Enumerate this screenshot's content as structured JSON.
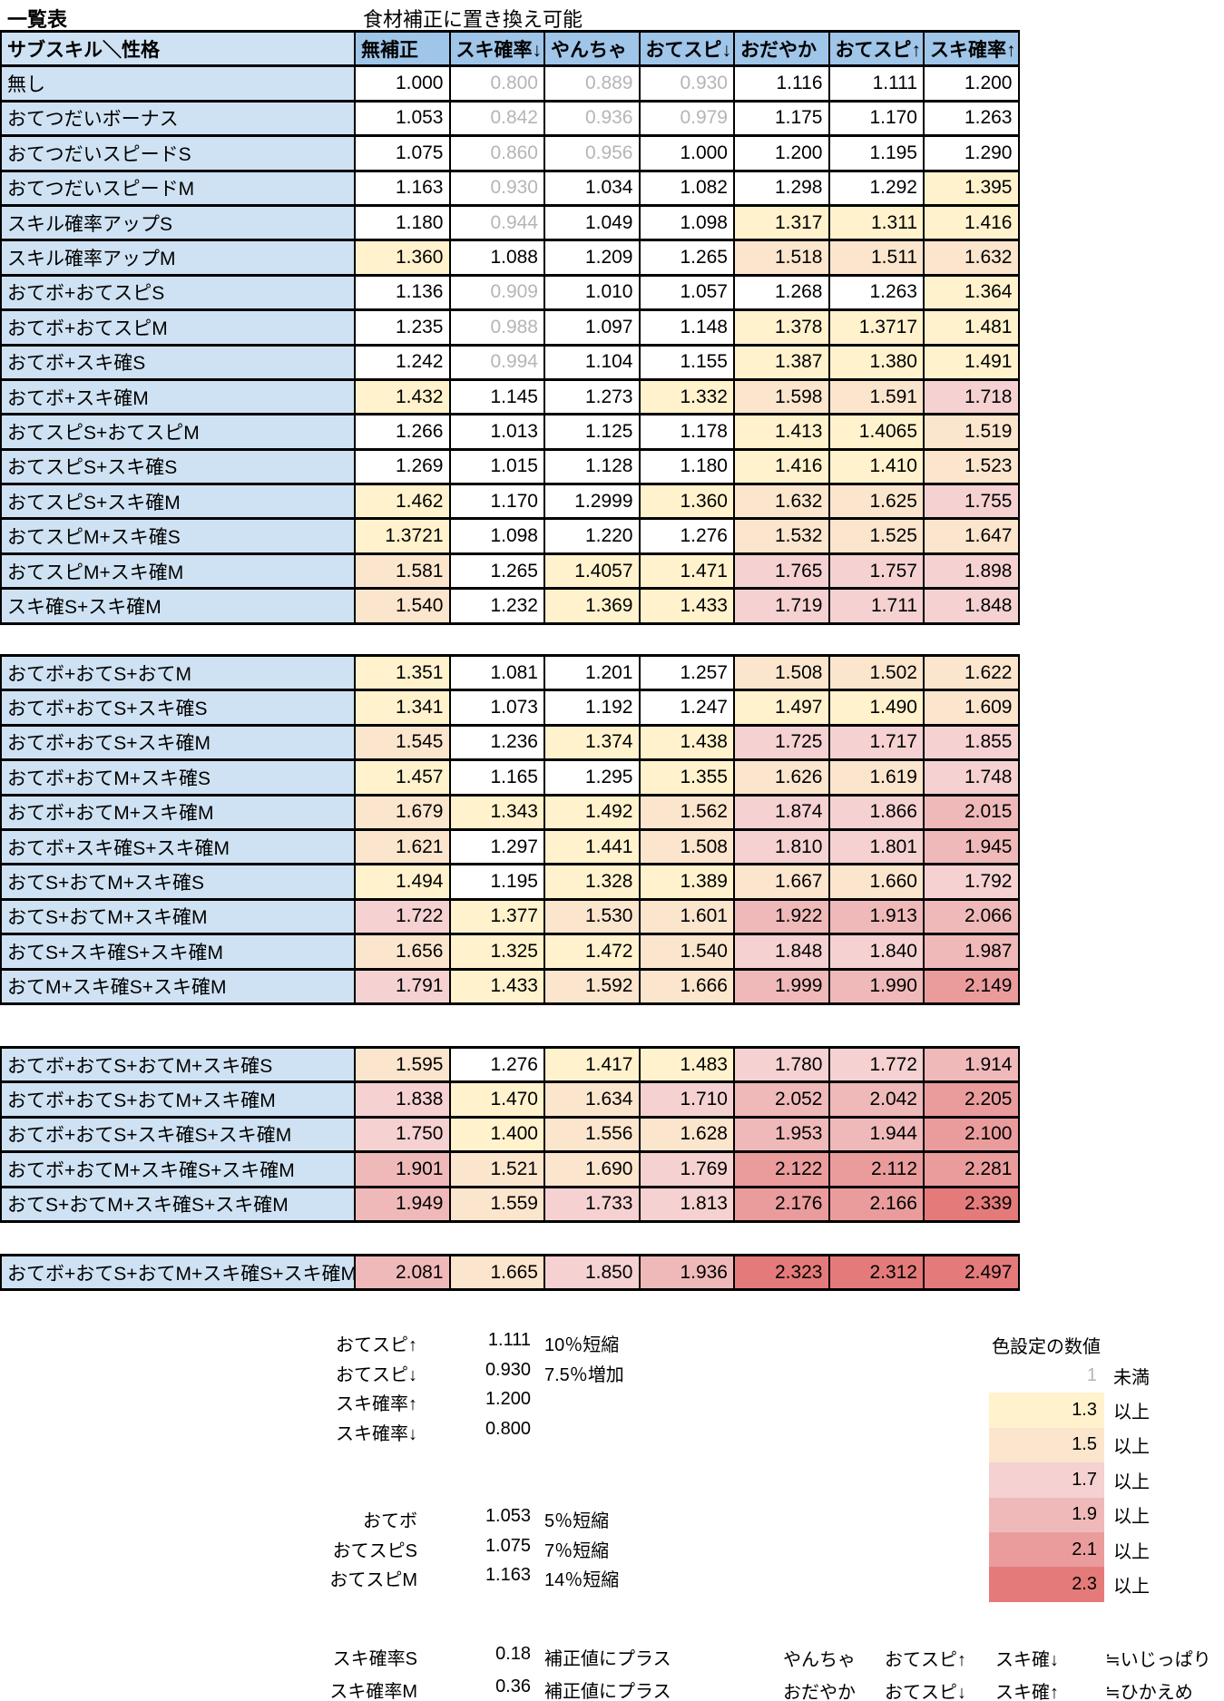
{
  "title": "一覧表",
  "note": "食材補正に置き換え可能",
  "table": {
    "corner_header": "サブスキル＼性格",
    "columns": [
      "無補正",
      "スキ確率↓",
      "やんちゃ",
      "おてスピ↓",
      "おだやか",
      "おてスピ↑",
      "スキ確率↑"
    ],
    "blocks": [
      {
        "rows": [
          {
            "label": "無し",
            "values": [
              "1.000",
              "0.800",
              "0.889",
              "0.930",
              "1.116",
              "1.111",
              "1.200"
            ]
          },
          {
            "label": "おてつだいボーナス",
            "values": [
              "1.053",
              "0.842",
              "0.936",
              "0.979",
              "1.175",
              "1.170",
              "1.263"
            ]
          },
          {
            "label": "おてつだいスピードS",
            "values": [
              "1.075",
              "0.860",
              "0.956",
              "1.000",
              "1.200",
              "1.195",
              "1.290"
            ]
          },
          {
            "label": "おてつだいスピードM",
            "values": [
              "1.163",
              "0.930",
              "1.034",
              "1.082",
              "1.298",
              "1.292",
              "1.395"
            ]
          },
          {
            "label": "スキル確率アップS",
            "values": [
              "1.180",
              "0.944",
              "1.049",
              "1.098",
              "1.317",
              "1.311",
              "1.416"
            ]
          },
          {
            "label": "スキル確率アップM",
            "values": [
              "1.360",
              "1.088",
              "1.209",
              "1.265",
              "1.518",
              "1.511",
              "1.632"
            ]
          },
          {
            "label": "おてボ+おてスピS",
            "values": [
              "1.136",
              "0.909",
              "1.010",
              "1.057",
              "1.268",
              "1.263",
              "1.364"
            ]
          },
          {
            "label": "おてボ+おてスピM",
            "values": [
              "1.235",
              "0.988",
              "1.097",
              "1.148",
              "1.378",
              "1.3717",
              "1.481"
            ]
          },
          {
            "label": "おてボ+スキ確S",
            "values": [
              "1.242",
              "0.994",
              "1.104",
              "1.155",
              "1.387",
              "1.380",
              "1.491"
            ]
          },
          {
            "label": "おてボ+スキ確M",
            "values": [
              "1.432",
              "1.145",
              "1.273",
              "1.332",
              "1.598",
              "1.591",
              "1.718"
            ]
          },
          {
            "label": "おてスピS+おてスピM",
            "values": [
              "1.266",
              "1.013",
              "1.125",
              "1.178",
              "1.413",
              "1.4065",
              "1.519"
            ]
          },
          {
            "label": "おてスピS+スキ確S",
            "values": [
              "1.269",
              "1.015",
              "1.128",
              "1.180",
              "1.416",
              "1.410",
              "1.523"
            ]
          },
          {
            "label": "おてスピS+スキ確M",
            "values": [
              "1.462",
              "1.170",
              "1.2999",
              "1.360",
              "1.632",
              "1.625",
              "1.755"
            ]
          },
          {
            "label": "おてスピM+スキ確S",
            "values": [
              "1.3721",
              "1.098",
              "1.220",
              "1.276",
              "1.532",
              "1.525",
              "1.647"
            ]
          },
          {
            "label": "おてスピM+スキ確M",
            "values": [
              "1.581",
              "1.265",
              "1.4057",
              "1.471",
              "1.765",
              "1.757",
              "1.898"
            ]
          },
          {
            "label": "スキ確S+スキ確M",
            "values": [
              "1.540",
              "1.232",
              "1.369",
              "1.433",
              "1.719",
              "1.711",
              "1.848"
            ]
          }
        ]
      },
      {
        "rows": [
          {
            "label": "おてボ+おてS+おてM",
            "values": [
              "1.351",
              "1.081",
              "1.201",
              "1.257",
              "1.508",
              "1.502",
              "1.622"
            ]
          },
          {
            "label": "おてボ+おてS+スキ確S",
            "values": [
              "1.341",
              "1.073",
              "1.192",
              "1.247",
              "1.497",
              "1.490",
              "1.609"
            ]
          },
          {
            "label": "おてボ+おてS+スキ確M",
            "values": [
              "1.545",
              "1.236",
              "1.374",
              "1.438",
              "1.725",
              "1.717",
              "1.855"
            ]
          },
          {
            "label": "おてボ+おてM+スキ確S",
            "values": [
              "1.457",
              "1.165",
              "1.295",
              "1.355",
              "1.626",
              "1.619",
              "1.748"
            ]
          },
          {
            "label": "おてボ+おてM+スキ確M",
            "values": [
              "1.679",
              "1.343",
              "1.492",
              "1.562",
              "1.874",
              "1.866",
              "2.015"
            ]
          },
          {
            "label": "おてボ+スキ確S+スキ確M",
            "values": [
              "1.621",
              "1.297",
              "1.441",
              "1.508",
              "1.810",
              "1.801",
              "1.945"
            ]
          },
          {
            "label": "おてS+おてM+スキ確S",
            "values": [
              "1.494",
              "1.195",
              "1.328",
              "1.389",
              "1.667",
              "1.660",
              "1.792"
            ]
          },
          {
            "label": "おてS+おてM+スキ確M",
            "values": [
              "1.722",
              "1.377",
              "1.530",
              "1.601",
              "1.922",
              "1.913",
              "2.066"
            ]
          },
          {
            "label": "おてS+スキ確S+スキ確M",
            "values": [
              "1.656",
              "1.325",
              "1.472",
              "1.540",
              "1.848",
              "1.840",
              "1.987"
            ]
          },
          {
            "label": "おてM+スキ確S+スキ確M",
            "values": [
              "1.791",
              "1.433",
              "1.592",
              "1.666",
              "1.999",
              "1.990",
              "2.149"
            ]
          }
        ]
      },
      {
        "rows": [
          {
            "label": "おてボ+おてS+おてM+スキ確S",
            "values": [
              "1.595",
              "1.276",
              "1.417",
              "1.483",
              "1.780",
              "1.772",
              "1.914"
            ]
          },
          {
            "label": "おてボ+おてS+おてM+スキ確M",
            "values": [
              "1.838",
              "1.470",
              "1.634",
              "1.710",
              "2.052",
              "2.042",
              "2.205"
            ]
          },
          {
            "label": "おてボ+おてS+スキ確S+スキ確M",
            "values": [
              "1.750",
              "1.400",
              "1.556",
              "1.628",
              "1.953",
              "1.944",
              "2.100"
            ]
          },
          {
            "label": "おてボ+おてM+スキ確S+スキ確M",
            "values": [
              "1.901",
              "1.521",
              "1.690",
              "1.769",
              "2.122",
              "2.112",
              "2.281"
            ]
          },
          {
            "label": "おてS+おてM+スキ確S+スキ確M",
            "values": [
              "1.949",
              "1.559",
              "1.733",
              "1.813",
              "2.176",
              "2.166",
              "2.339"
            ]
          }
        ]
      },
      {
        "rows": [
          {
            "label": "おてボ+おてS+おてM+スキ確S+スキ確M",
            "values": [
              "2.081",
              "1.665",
              "1.850",
              "1.936",
              "2.323",
              "2.312",
              "2.497"
            ]
          }
        ]
      }
    ]
  },
  "legend_left": {
    "group1": [
      {
        "label": "おてスピ↑",
        "value": "1.111",
        "desc": "10％短縮"
      },
      {
        "label": "おてスピ↓",
        "value": "0.930",
        "desc": "7.5％増加"
      },
      {
        "label": "スキ確率↑",
        "value": "1.200",
        "desc": ""
      },
      {
        "label": "スキ確率↓",
        "value": "0.800",
        "desc": ""
      }
    ],
    "group2": [
      {
        "label": "おてボ",
        "value": "1.053",
        "desc": "5％短縮"
      },
      {
        "label": "おてスピS",
        "value": "1.075",
        "desc": "7％短縮"
      },
      {
        "label": "おてスピM",
        "value": "1.163",
        "desc": "14％短縮"
      }
    ],
    "group3": [
      {
        "label": "スキ確率S",
        "value": "0.18",
        "desc": "補正値にプラス"
      },
      {
        "label": "スキ確率M",
        "value": "0.36",
        "desc": "補正値にプラス"
      }
    ]
  },
  "color_legend": {
    "title": "色設定の数値",
    "rows": [
      {
        "value": "1",
        "suffix": "未満",
        "tier": "none"
      },
      {
        "value": "1.3",
        "suffix": "以上",
        "tier": "t13"
      },
      {
        "value": "1.5",
        "suffix": "以上",
        "tier": "t15"
      },
      {
        "value": "1.7",
        "suffix": "以上",
        "tier": "t17"
      },
      {
        "value": "1.9",
        "suffix": "以上",
        "tier": "t19"
      },
      {
        "value": "2.1",
        "suffix": "以上",
        "tier": "t21"
      },
      {
        "value": "2.3",
        "suffix": "以上",
        "tier": "t23"
      }
    ]
  },
  "nature_notes": [
    {
      "cols": [
        "やんちゃ",
        "おてスピ↑",
        "スキ確↓",
        "≒いじっぱり"
      ]
    },
    {
      "cols": [
        "おだやか",
        "おてスピ↓",
        "スキ確↑",
        "≒ひかえめ"
      ]
    }
  ],
  "colors": {
    "header_bg": "#9fc5e8",
    "label_bg": "#cfe2f3",
    "gray_text": "#b5b5b5",
    "t13": "#fff2cc",
    "t15": "#fce5cd",
    "t17": "#f5d1d1",
    "t19": "#efb9b9",
    "t21": "#ea9c9c",
    "t23": "#e57a7a"
  },
  "thresholds": {
    "gray_below": 1,
    "tiers": [
      [
        2.3,
        "t23"
      ],
      [
        2.1,
        "t21"
      ],
      [
        1.9,
        "t19"
      ],
      [
        1.7,
        "t17"
      ],
      [
        1.5,
        "t15"
      ],
      [
        1.3,
        "t13"
      ]
    ]
  }
}
